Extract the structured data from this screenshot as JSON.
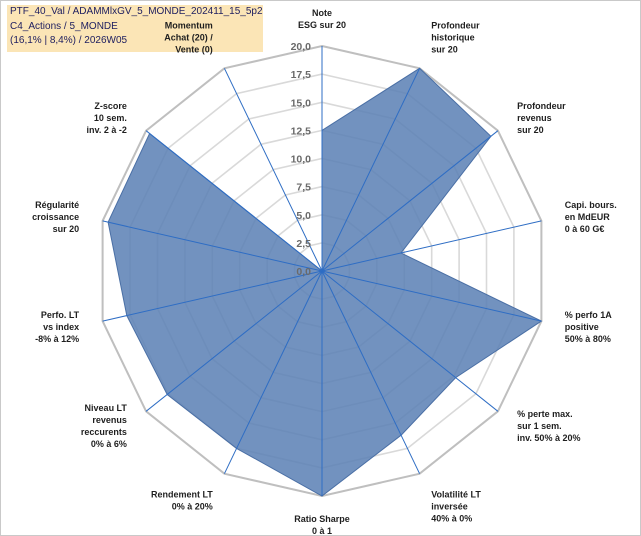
{
  "title_lines": [
    "PTF_40_Val / ADAMMlxGV_5_MONDE_202411_15_5p2",
    "C4_Actions / 5_MONDE",
    "(16,1% | 8,4%) / 2026W05"
  ],
  "chart_data": {
    "type": "radar",
    "rmin": 0,
    "rmax": 20,
    "ticks": [
      "0,0",
      "2,5",
      "5,0",
      "7,5",
      "10,0",
      "12,5",
      "15,0",
      "17,5",
      "20,0"
    ],
    "tick_values": [
      0,
      2.5,
      5,
      7.5,
      10,
      12.5,
      15,
      17.5,
      20
    ],
    "fill_color": "#5b80b4",
    "grid": true,
    "axes": [
      {
        "label": [
          "Note",
          "ESG sur 20"
        ],
        "value": 12.5
      },
      {
        "label": [
          "Profondeur",
          "historique",
          "sur 20"
        ],
        "value": 20
      },
      {
        "label": [
          "Profondeur",
          "revenus",
          "sur 20"
        ],
        "value": 19.2
      },
      {
        "label": [
          "Capi. bours.",
          "en MdEUR",
          "0 à 60 G€"
        ],
        "value": 7.2
      },
      {
        "label": [
          "% perfo 1A",
          "positive",
          "50% à 80%"
        ],
        "value": 20
      },
      {
        "label": [
          "% perte max.",
          "sur 1 sem.",
          "inv. 50% à 20%"
        ],
        "value": 15.2
      },
      {
        "label": [
          "Volatilité LT",
          "inversée",
          "40% à 0%"
        ],
        "value": 16.2
      },
      {
        "label": [
          "Ratio Sharpe",
          "0 à 1"
        ],
        "value": 20
      },
      {
        "label": [
          "Rendement LT",
          "0% à 20%"
        ],
        "value": 17.5
      },
      {
        "label": [
          "Niveau LT",
          "revenus",
          "reccurents",
          "0% à 6%"
        ],
        "value": 17.6
      },
      {
        "label": [
          "Perfo. LT",
          "vs index",
          "-8% à 12%"
        ],
        "value": 17.8
      },
      {
        "label": [
          "Régularité",
          "croissance",
          "sur 20"
        ],
        "value": 19.5
      },
      {
        "label": [
          "Z-score",
          "10 sem.",
          "inv. 2 à -2"
        ],
        "value": 19.6
      },
      {
        "label": [
          "Momentum",
          "Achat (20) /",
          "Vente (0)"
        ],
        "value": 0,
        "first_line_color": "#b89b6a"
      }
    ]
  }
}
